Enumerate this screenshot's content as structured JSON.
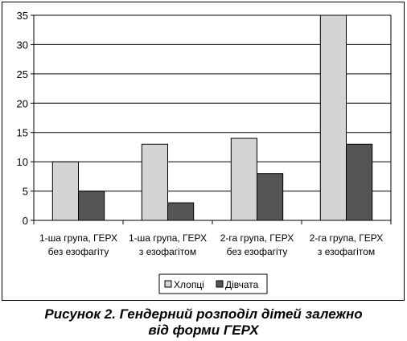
{
  "chart_data": {
    "type": "bar",
    "categories": [
      [
        "1-ша група, ГЕРХ",
        "без езофагіту"
      ],
      [
        "1-ша група, ГЕРХ",
        "з езофагітом"
      ],
      [
        "2-га група, ГЕРХ",
        "без езофагіту"
      ],
      [
        "2-га група, ГЕРХ",
        "з езофагітом"
      ]
    ],
    "series": [
      {
        "name": "Хлопці",
        "values": [
          10,
          13,
          14,
          35
        ],
        "color": "#d4d4d4"
      },
      {
        "name": "Дівчата",
        "values": [
          5,
          3,
          8,
          13
        ],
        "color": "#555555"
      }
    ],
    "ylim": [
      0,
      35
    ],
    "yticks": [
      "0",
      "5",
      "10",
      "15",
      "20",
      "25",
      "30",
      "35"
    ],
    "grid": true,
    "legend_position": "bottom"
  },
  "caption": {
    "line1": "Рисунок 2. Гендерний розподіл дітей залежно",
    "line2": "від форми ГЕРХ"
  }
}
